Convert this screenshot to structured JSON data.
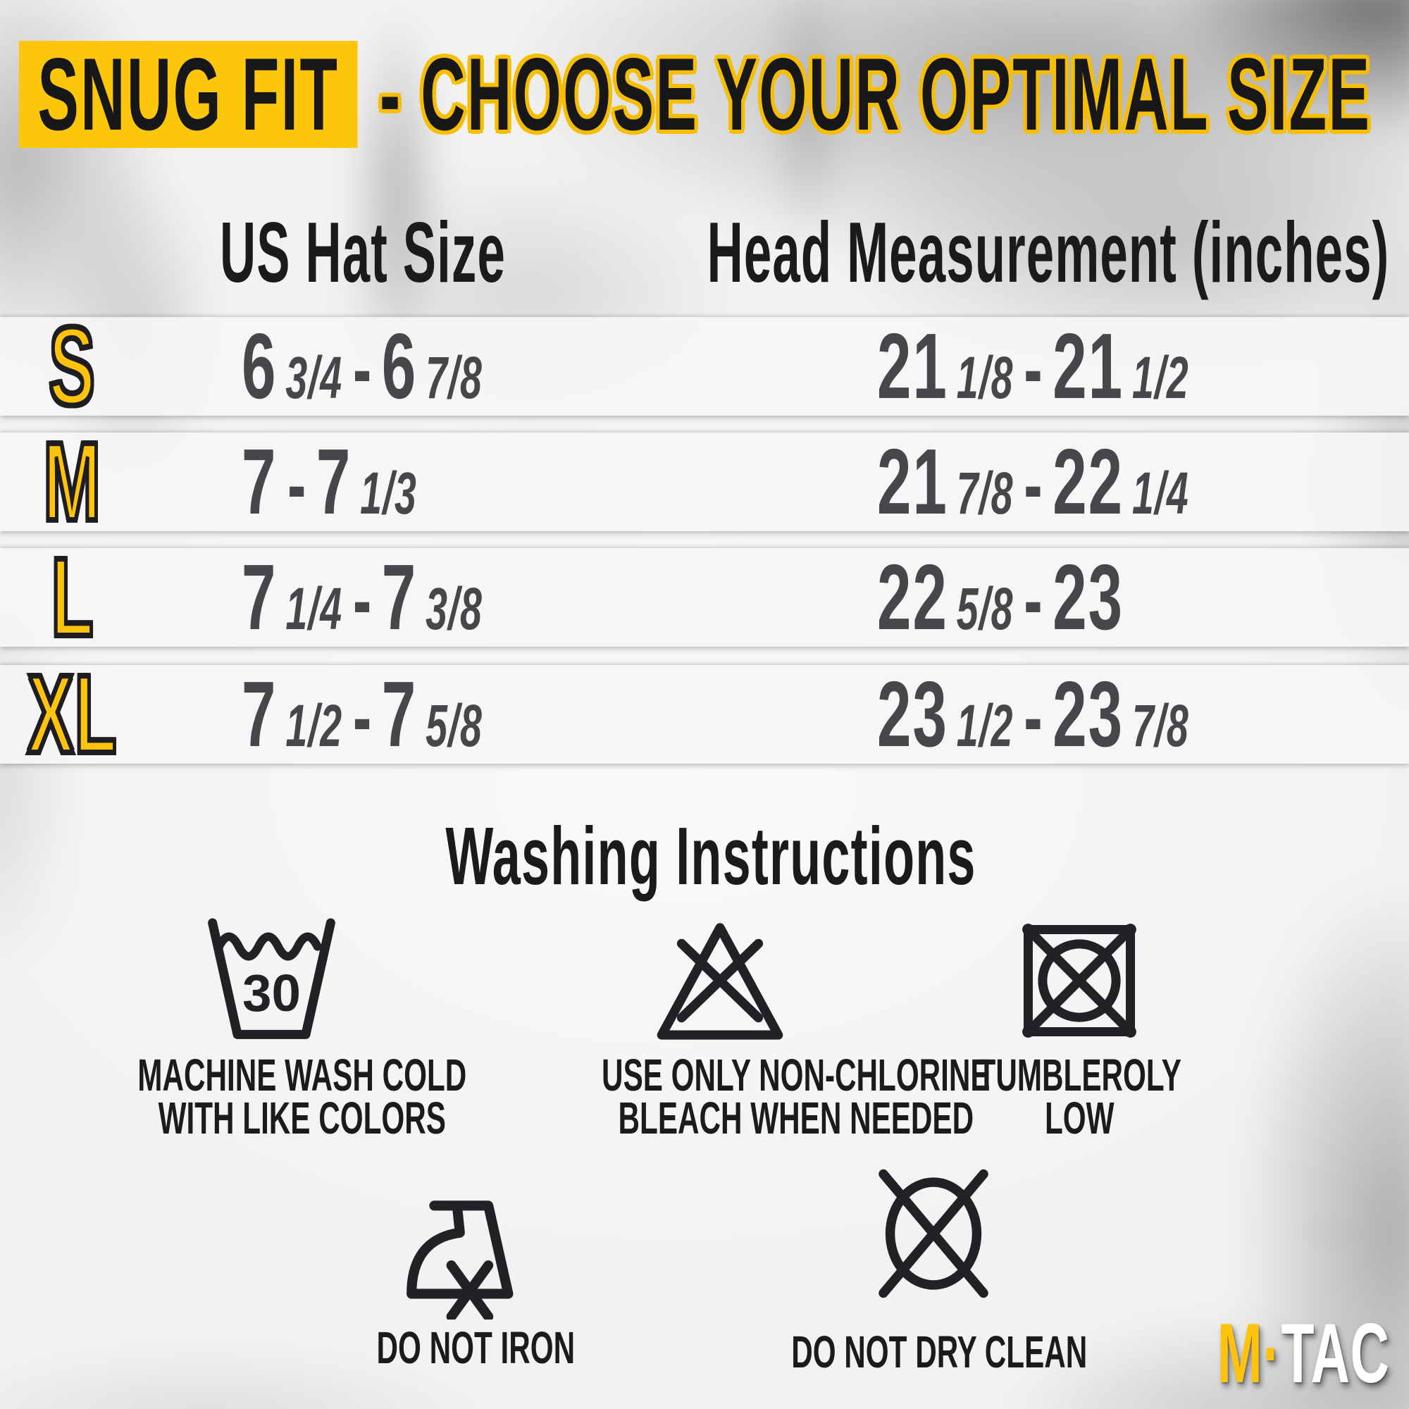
{
  "title": {
    "highlight": "SNUG FIT",
    "rest": "- CHOOSE YOUR OPTIMAL SIZE"
  },
  "table": {
    "headers": {
      "hat": "US Hat Size",
      "head": "Head Measurement (inches)"
    },
    "rows": [
      {
        "size": "S",
        "hat_text": "6 3/4 - 6 7/8",
        "head_text": "21 1/8 - 21 1/2",
        "hat": [
          {
            "n": "6",
            "f": "3/4"
          },
          {
            "n": "6",
            "f": "7/8"
          }
        ],
        "head": [
          {
            "n": "21",
            "f": "1/8"
          },
          {
            "n": "21",
            "f": "1/2"
          }
        ]
      },
      {
        "size": "M",
        "hat_text": "7 - 7 1/3",
        "head_text": "21 7/8 - 22 1/4",
        "hat": [
          {
            "n": "7",
            "f": ""
          },
          {
            "n": "7",
            "f": "1/3"
          }
        ],
        "head": [
          {
            "n": "21",
            "f": "7/8"
          },
          {
            "n": "22",
            "f": "1/4"
          }
        ]
      },
      {
        "size": "L",
        "hat_text": "7 1/4 - 7 3/8",
        "head_text": "22 5/8 - 23",
        "hat": [
          {
            "n": "7",
            "f": "1/4"
          },
          {
            "n": "7",
            "f": "3/8"
          }
        ],
        "head": [
          {
            "n": "22",
            "f": "5/8"
          },
          {
            "n": "23",
            "f": ""
          }
        ]
      },
      {
        "size": "XL",
        "hat_text": "7 1/2 - 7 5/8",
        "head_text": "23 1/2 - 23 7/8",
        "hat": [
          {
            "n": "7",
            "f": "1/2"
          },
          {
            "n": "7",
            "f": "5/8"
          }
        ],
        "head": [
          {
            "n": "23",
            "f": "1/2"
          },
          {
            "n": "23",
            "f": "7/8"
          }
        ]
      }
    ]
  },
  "washing": {
    "title": "Washing Instructions",
    "wash": {
      "temp": "30",
      "line1": "MACHINE WASH COLD",
      "line2": "WITH LIKE COLORS"
    },
    "bleach": {
      "line1": "USE ONLY NON-CHLORINE",
      "line2": "BLEACH WHEN NEEDED"
    },
    "tumble": {
      "line1": "TUMBLEROLY",
      "line2": "LOW"
    },
    "iron": {
      "line1": "DO NOT IRON"
    },
    "dryclean": {
      "line1": "DO NOT DRY CLEAN"
    }
  },
  "brand": {
    "m": "M",
    "dot": "·",
    "tac": "TAC"
  },
  "colors": {
    "accent_yellow": "#FCC60B",
    "letter_yellow": "#FFC30D",
    "text_black": "#1B1B1E",
    "value_gray": "#47474B",
    "brand_white": "#FFFFFF"
  }
}
